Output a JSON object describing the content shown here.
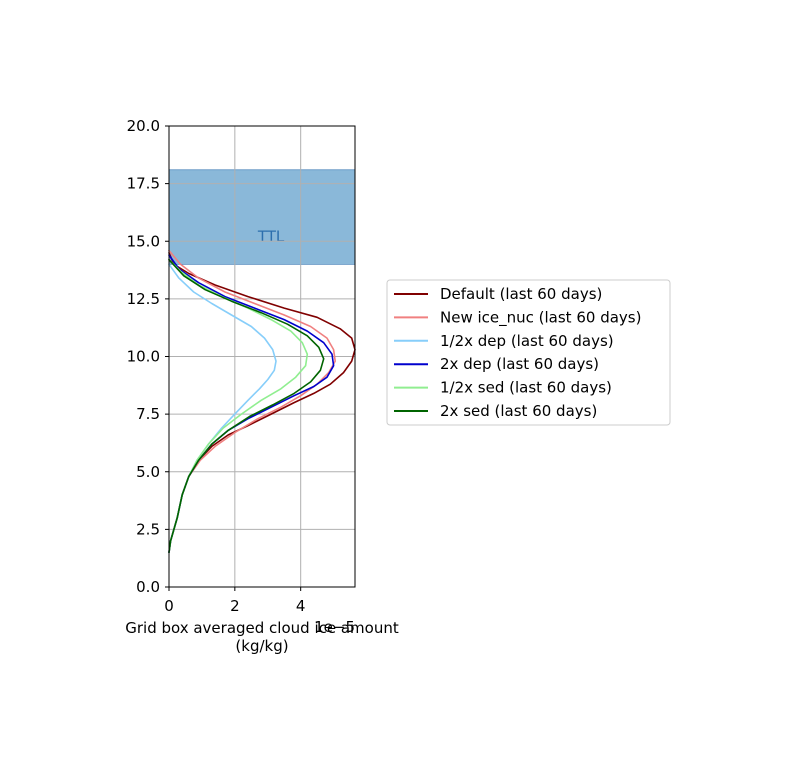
{
  "chart_data": {
    "type": "line",
    "title": "",
    "xlabel": "Grid box averaged cloud ice amount\n(kg/kg)",
    "xlabel_lines": [
      "Grid box averaged cloud ice amount",
      "(kg/kg)"
    ],
    "x_offset_label": "1e−5",
    "ylabel": "",
    "xlim": [
      0,
      5.65
    ],
    "ylim": [
      0,
      20
    ],
    "xticks": [
      0,
      2,
      4
    ],
    "xtick_labels": [
      "0",
      "2",
      "4"
    ],
    "yticks": [
      0,
      2.5,
      5,
      7.5,
      10,
      12.5,
      15,
      17.5,
      20
    ],
    "ytick_labels": [
      "0.0",
      "2.5",
      "5.0",
      "7.5",
      "10.0",
      "12.5",
      "15.0",
      "17.5",
      "20.0"
    ],
    "grid": true,
    "legend_position": "right, outside plot",
    "band": {
      "label": "TTL",
      "ymin": 14.0,
      "ymax": 18.1,
      "color": "#8ab8d9",
      "label_color": "#2c6fad",
      "label_x": 3.1,
      "label_y": 15.2
    },
    "series": [
      {
        "name": "Default (last 60 days)",
        "color": "#800000",
        "x": [
          0.0,
          0.05,
          0.15,
          0.25,
          0.4,
          0.6,
          0.9,
          1.3,
          1.8,
          2.4,
          3.1,
          3.8,
          4.4,
          4.9,
          5.3,
          5.55,
          5.65,
          5.55,
          5.2,
          4.5,
          3.5,
          2.4,
          1.4,
          0.6,
          0.15,
          0.0
        ],
        "y": [
          1.5,
          2.0,
          2.5,
          3.0,
          4.0,
          4.8,
          5.5,
          6.1,
          6.6,
          7.0,
          7.5,
          8.0,
          8.4,
          8.8,
          9.3,
          9.8,
          10.3,
          10.8,
          11.2,
          11.7,
          12.1,
          12.6,
          13.1,
          13.6,
          14.0,
          14.5
        ]
      },
      {
        "name": "New ice_nuc (last 60 days)",
        "color": "#f08080",
        "x": [
          0.0,
          0.05,
          0.15,
          0.25,
          0.4,
          0.6,
          0.95,
          1.4,
          2.0,
          2.7,
          3.4,
          4.0,
          4.5,
          4.85,
          5.05,
          5.0,
          4.8,
          4.3,
          3.5,
          2.6,
          1.7,
          0.9,
          0.35,
          0.0
        ],
        "y": [
          1.5,
          2.0,
          2.5,
          3.0,
          4.0,
          4.8,
          5.5,
          6.1,
          6.7,
          7.3,
          7.8,
          8.3,
          8.8,
          9.3,
          9.8,
          10.3,
          10.8,
          11.3,
          11.8,
          12.3,
          12.8,
          13.4,
          14.0,
          14.6
        ]
      },
      {
        "name": "1/2x dep (last 60 days)",
        "color": "#87cefa",
        "x": [
          0.0,
          0.05,
          0.15,
          0.25,
          0.4,
          0.6,
          0.85,
          1.2,
          1.6,
          2.0,
          2.4,
          2.75,
          3.0,
          3.2,
          3.25,
          3.15,
          2.9,
          2.5,
          1.9,
          1.3,
          0.75,
          0.3,
          0.0
        ],
        "y": [
          1.5,
          2.0,
          2.5,
          3.0,
          4.0,
          4.8,
          5.5,
          6.2,
          6.9,
          7.5,
          8.1,
          8.6,
          9.0,
          9.4,
          9.8,
          10.3,
          10.8,
          11.3,
          11.8,
          12.3,
          12.8,
          13.4,
          14.0
        ]
      },
      {
        "name": "2x dep (last 60 days)",
        "color": "#0000cd",
        "x": [
          0.0,
          0.05,
          0.15,
          0.25,
          0.4,
          0.6,
          0.9,
          1.3,
          1.8,
          2.4,
          3.1,
          3.8,
          4.4,
          4.8,
          5.0,
          4.95,
          4.7,
          4.2,
          3.5,
          2.6,
          1.7,
          0.9,
          0.3,
          0.0
        ],
        "y": [
          1.5,
          2.0,
          2.5,
          3.0,
          4.0,
          4.8,
          5.5,
          6.2,
          6.8,
          7.3,
          7.8,
          8.3,
          8.7,
          9.1,
          9.6,
          10.1,
          10.6,
          11.1,
          11.6,
          12.1,
          12.6,
          13.2,
          13.8,
          14.4
        ]
      },
      {
        "name": "1/2x sed (last 60 days)",
        "color": "#90ee90",
        "x": [
          0.0,
          0.05,
          0.15,
          0.25,
          0.4,
          0.6,
          0.85,
          1.2,
          1.65,
          2.2,
          2.8,
          3.4,
          3.85,
          4.15,
          4.2,
          4.05,
          3.7,
          3.1,
          2.4,
          1.6,
          0.9,
          0.35,
          0.0
        ],
        "y": [
          1.5,
          2.0,
          2.5,
          3.0,
          4.0,
          4.8,
          5.5,
          6.2,
          6.9,
          7.5,
          8.1,
          8.6,
          9.1,
          9.6,
          10.1,
          10.6,
          11.1,
          11.6,
          12.1,
          12.6,
          13.1,
          13.7,
          14.2
        ]
      },
      {
        "name": "2x sed (last 60 days)",
        "color": "#006400",
        "x": [
          0.0,
          0.05,
          0.15,
          0.25,
          0.4,
          0.6,
          0.9,
          1.3,
          1.8,
          2.45,
          3.15,
          3.8,
          4.3,
          4.6,
          4.7,
          4.55,
          4.2,
          3.6,
          2.8,
          1.9,
          1.1,
          0.45,
          0.0
        ],
        "y": [
          1.5,
          2.0,
          2.5,
          3.0,
          4.0,
          4.8,
          5.5,
          6.2,
          6.8,
          7.4,
          7.9,
          8.4,
          8.9,
          9.4,
          9.9,
          10.4,
          10.9,
          11.4,
          11.9,
          12.4,
          12.9,
          13.5,
          14.2
        ]
      }
    ]
  }
}
